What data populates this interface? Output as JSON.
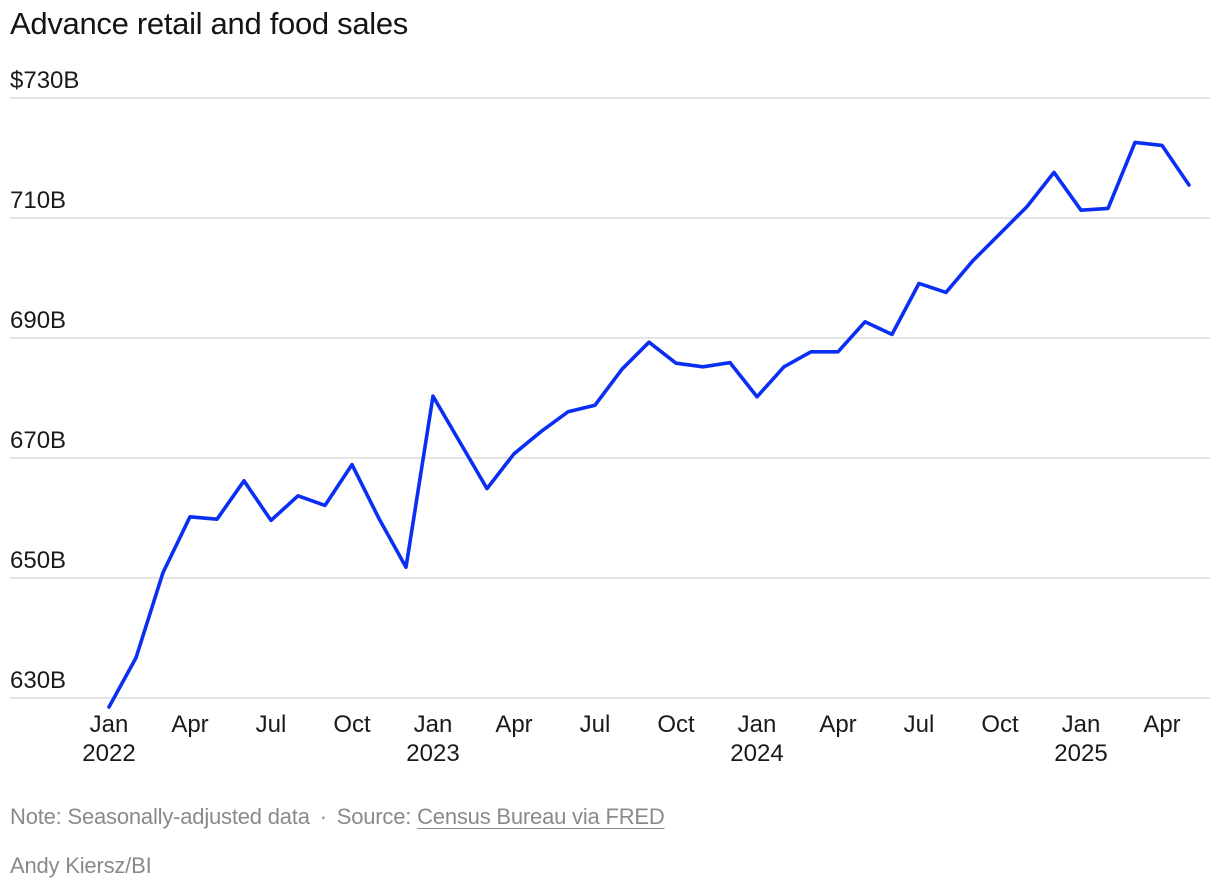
{
  "chart_data": {
    "type": "line",
    "title": "Advance retail and food sales",
    "xlabel": "",
    "ylabel": "",
    "ylim": [
      628,
      730
    ],
    "y_ticks": [
      {
        "value": 730,
        "label": "$730B"
      },
      {
        "value": 710,
        "label": "710B"
      },
      {
        "value": 690,
        "label": "690B"
      },
      {
        "value": 670,
        "label": "670B"
      },
      {
        "value": 650,
        "label": "650B"
      },
      {
        "value": 630,
        "label": "630B"
      }
    ],
    "x_ticks": [
      {
        "index": 0,
        "month": "Jan",
        "year": "2022"
      },
      {
        "index": 3,
        "month": "Apr",
        "year": ""
      },
      {
        "index": 6,
        "month": "Jul",
        "year": ""
      },
      {
        "index": 9,
        "month": "Oct",
        "year": ""
      },
      {
        "index": 12,
        "month": "Jan",
        "year": "2023"
      },
      {
        "index": 15,
        "month": "Apr",
        "year": ""
      },
      {
        "index": 18,
        "month": "Jul",
        "year": ""
      },
      {
        "index": 21,
        "month": "Oct",
        "year": ""
      },
      {
        "index": 24,
        "month": "Jan",
        "year": "2024"
      },
      {
        "index": 27,
        "month": "Apr",
        "year": ""
      },
      {
        "index": 30,
        "month": "Jul",
        "year": ""
      },
      {
        "index": 33,
        "month": "Oct",
        "year": ""
      },
      {
        "index": 36,
        "month": "Jan",
        "year": "2025"
      },
      {
        "index": 39,
        "month": "Apr",
        "year": ""
      }
    ],
    "series": [
      {
        "name": "Advance retail and food sales",
        "color": "#0a2ff2",
        "start": "2022-01",
        "values": [
          628.5,
          636.7,
          650.9,
          660.2,
          659.8,
          666.2,
          659.6,
          663.7,
          662.1,
          668.9,
          659.9,
          651.8,
          680.3,
          672.6,
          664.9,
          670.7,
          674.4,
          677.7,
          678.8,
          684.8,
          689.3,
          685.8,
          685.2,
          685.9,
          680.2,
          685.2,
          687.7,
          687.7,
          692.7,
          690.6,
          699.1,
          697.6,
          702.9,
          707.4,
          711.9,
          717.6,
          711.3,
          711.6,
          722.6,
          722.1,
          715.5
        ]
      }
    ]
  },
  "footer": {
    "note": "Note: Seasonally-adjusted data",
    "separator": "·",
    "source_prefix": "Source:",
    "source_link": "Census Bureau via FRED",
    "credit": "Andy Kiersz/BI"
  },
  "colors": {
    "line": "#0a2ff2",
    "grid": "#dcdcdc",
    "text": "#1a1a1a",
    "muted": "#8a8a8a"
  }
}
